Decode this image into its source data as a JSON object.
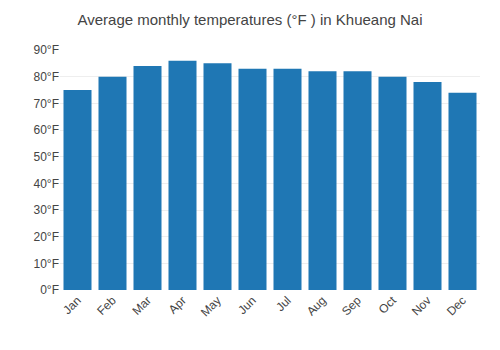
{
  "chart_data": {
    "type": "bar",
    "title": "Average monthly temperatures (°F ) in Khueang Nai",
    "categories": [
      "Jan",
      "Feb",
      "Mar",
      "Apr",
      "May",
      "Jun",
      "Jul",
      "Aug",
      "Sep",
      "Oct",
      "Nov",
      "Dec"
    ],
    "values": [
      75,
      80,
      84,
      86,
      85,
      83,
      83,
      82,
      82,
      80,
      78,
      74
    ],
    "ylim": [
      0,
      90
    ],
    "yticks": [
      {
        "value": 0,
        "label": "0°F"
      },
      {
        "value": 10,
        "label": "10°F"
      },
      {
        "value": 20,
        "label": "20°F"
      },
      {
        "value": 30,
        "label": "30°F"
      },
      {
        "value": 40,
        "label": "40°F"
      },
      {
        "value": 50,
        "label": "50°F"
      },
      {
        "value": 60,
        "label": "60°F"
      },
      {
        "value": 70,
        "label": "70°F"
      },
      {
        "value": 80,
        "label": "80°F"
      },
      {
        "value": 90,
        "label": "90°F"
      }
    ],
    "grid": true
  }
}
